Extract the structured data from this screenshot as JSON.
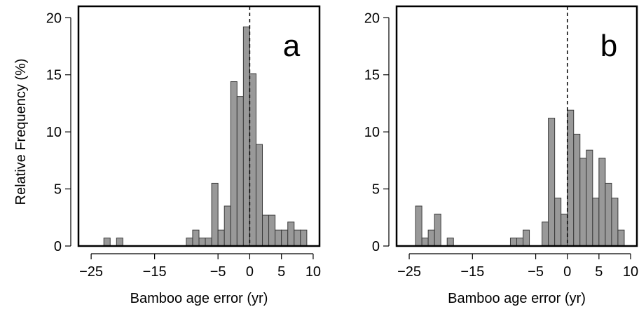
{
  "ylabel": "Relative Frequency (%)",
  "chart_data": [
    {
      "type": "bar",
      "panel_label": "a",
      "xlabel": "Bamboo age error (yr)",
      "ylabel": "Relative Frequency (%)",
      "xlim": [
        -27,
        11
      ],
      "ylim": [
        0,
        21
      ],
      "xticks": [
        -25,
        -15,
        -5,
        0,
        5,
        10
      ],
      "xtick_labels": [
        "−25",
        "−15",
        "−5",
        "0",
        "5",
        "10"
      ],
      "yticks": [
        0,
        5,
        10,
        15,
        20
      ],
      "ytick_labels": [
        "0",
        "5",
        "10",
        "15",
        "20"
      ],
      "reference_line_x": 0,
      "bin_width": 1,
      "bins": [
        {
          "x0": -23,
          "value": 0.7
        },
        {
          "x0": -21,
          "value": 0.7
        },
        {
          "x0": -10,
          "value": 0.7
        },
        {
          "x0": -9,
          "value": 1.4
        },
        {
          "x0": -8,
          "value": 0.7
        },
        {
          "x0": -7,
          "value": 0.7
        },
        {
          "x0": -6,
          "value": 5.5
        },
        {
          "x0": -5,
          "value": 1.4
        },
        {
          "x0": -4,
          "value": 3.5
        },
        {
          "x0": -3,
          "value": 14.4
        },
        {
          "x0": -2,
          "value": 13.1
        },
        {
          "x0": -1,
          "value": 19.2
        },
        {
          "x0": 0,
          "value": 15.1
        },
        {
          "x0": 1,
          "value": 8.9
        },
        {
          "x0": 2,
          "value": 2.7
        },
        {
          "x0": 3,
          "value": 2.7
        },
        {
          "x0": 4,
          "value": 1.4
        },
        {
          "x0": 5,
          "value": 1.4
        },
        {
          "x0": 6,
          "value": 2.1
        },
        {
          "x0": 7,
          "value": 1.4
        },
        {
          "x0": 8,
          "value": 1.4
        }
      ],
      "bar_color": "#999999",
      "grid": false
    },
    {
      "type": "bar",
      "panel_label": "b",
      "xlabel": "Bamboo age error (yr)",
      "ylabel": "",
      "xlim": [
        -27,
        11
      ],
      "ylim": [
        0,
        21
      ],
      "xticks": [
        -25,
        -15,
        -5,
        0,
        5,
        10
      ],
      "xtick_labels": [
        "−25",
        "−15",
        "−5",
        "0",
        "5",
        "10"
      ],
      "yticks": [
        0,
        5,
        10,
        15,
        20
      ],
      "ytick_labels": [
        "0",
        "5",
        "10",
        "15",
        "20"
      ],
      "reference_line_x": 0,
      "bin_width": 1,
      "bins": [
        {
          "x0": -24,
          "value": 3.5
        },
        {
          "x0": -23,
          "value": 0.7
        },
        {
          "x0": -22,
          "value": 1.4
        },
        {
          "x0": -21,
          "value": 2.8
        },
        {
          "x0": -19,
          "value": 0.7
        },
        {
          "x0": -9,
          "value": 0.7
        },
        {
          "x0": -8,
          "value": 0.7
        },
        {
          "x0": -7,
          "value": 1.4
        },
        {
          "x0": -4,
          "value": 2.1
        },
        {
          "x0": -3,
          "value": 11.2
        },
        {
          "x0": -2,
          "value": 4.2
        },
        {
          "x0": -1,
          "value": 2.8
        },
        {
          "x0": 0,
          "value": 11.9
        },
        {
          "x0": 1,
          "value": 9.8
        },
        {
          "x0": 2,
          "value": 7.7
        },
        {
          "x0": 3,
          "value": 8.4
        },
        {
          "x0": 4,
          "value": 4.2
        },
        {
          "x0": 5,
          "value": 7.7
        },
        {
          "x0": 6,
          "value": 5.5
        },
        {
          "x0": 7,
          "value": 4.2
        },
        {
          "x0": 8,
          "value": 1.4
        }
      ],
      "bar_color": "#999999",
      "grid": false
    }
  ]
}
